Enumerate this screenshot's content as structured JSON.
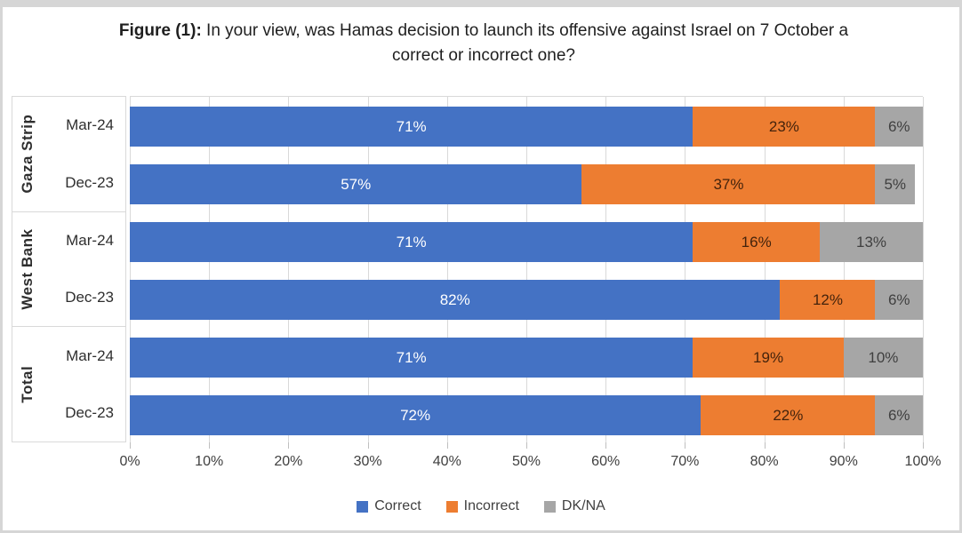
{
  "title": {
    "prefix": "Figure (1):",
    "text": " In your view, was Hamas decision to launch its offensive against Israel on 7 October a correct or incorrect one?"
  },
  "chart_data": {
    "type": "bar",
    "orientation": "horizontal",
    "stacked": true,
    "unit": "%",
    "grid": true,
    "x_axis": {
      "min": 0,
      "max": 100,
      "tick_step": 10,
      "tick_labels": [
        "0%",
        "10%",
        "20%",
        "30%",
        "40%",
        "50%",
        "60%",
        "70%",
        "80%",
        "90%",
        "100%"
      ]
    },
    "series": [
      {
        "name": "Correct",
        "color": "#4472C4",
        "label_color": "#FFFFFF"
      },
      {
        "name": "Incorrect",
        "color": "#ED7D31",
        "label_color": "#44230C"
      },
      {
        "name": "DK/NA",
        "color": "#A6A6A6",
        "label_color": "#3F3F3F"
      }
    ],
    "groups": [
      {
        "name": "Gaza Strip",
        "rows": [
          {
            "period": "Mar-24",
            "values": [
              71,
              23,
              6
            ]
          },
          {
            "period": "Dec-23",
            "values": [
              57,
              37,
              5
            ]
          }
        ]
      },
      {
        "name": "West Bank",
        "rows": [
          {
            "period": "Mar-24",
            "values": [
              71,
              16,
              13
            ]
          },
          {
            "period": "Dec-23",
            "values": [
              82,
              12,
              6
            ]
          }
        ]
      },
      {
        "name": "Total",
        "rows": [
          {
            "period": "Mar-24",
            "values": [
              71,
              19,
              10
            ]
          },
          {
            "period": "Dec-23",
            "values": [
              72,
              22,
              6
            ]
          }
        ]
      }
    ],
    "legend": {
      "position": "bottom"
    }
  }
}
